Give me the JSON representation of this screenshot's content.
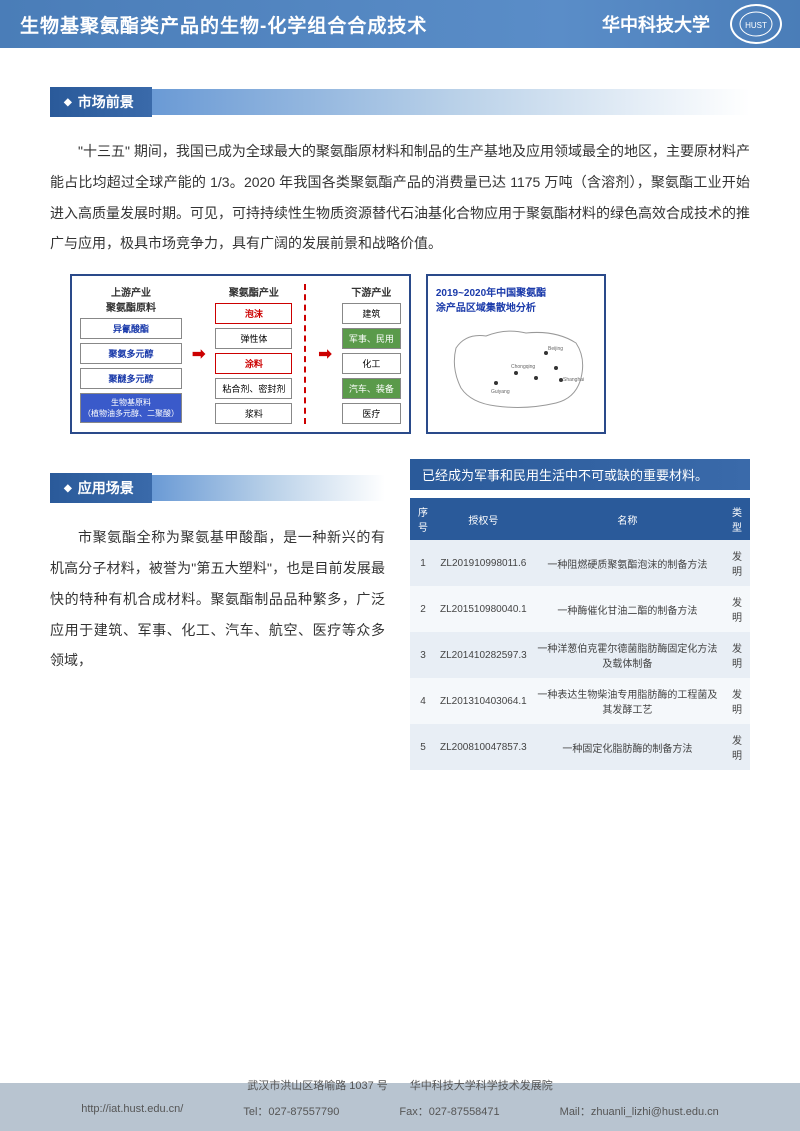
{
  "header": {
    "title": "生物基聚氨酯类产品的生物-化学组合合成技术",
    "university": "华中科技大学",
    "logo_text": "HUST"
  },
  "section1": {
    "title": "市场前景",
    "text": "\"十三五\" 期间，我国已成为全球最大的聚氨酯原材料和制品的生产基地及应用领域最全的地区，主要原材料产能占比均超过全球产能的 1/3。2020 年我国各类聚氨酯产品的消费量已达 1175 万吨（含溶剂），聚氨酯工业开始进入高质量发展时期。可见，可持持续性生物质资源替代石油基化合物应用于聚氨酯材料的绿色高效合成技术的推广与应用，极具市场竞争力，具有广阔的发展前景和战略价值。"
  },
  "diagram": {
    "col1_head": "上游产业\n聚氨酯原料",
    "col1": [
      "异氰酸酯",
      "聚氨多元醇",
      "聚醚多元醇"
    ],
    "col1_bio": "生物基原料\n（植物油多元醇、二聚酸）",
    "col2_head": "聚氨酯产业",
    "col2": [
      "泡沫",
      "弹性体",
      "涂料",
      "粘合剂、密封剂",
      "浆料"
    ],
    "col3_head": "下游产业",
    "col3": [
      "建筑",
      "军事、民用",
      "化工",
      "汽车、装备",
      "医疗"
    ],
    "map_title": "2019~2020年中国聚氨酯\n涂产品区域集散地分析"
  },
  "section2": {
    "title": "应用场景",
    "text": "市聚氨酯全称为聚氨基甲酸酯，是一种新兴的有机高分子材料，被誉为\"第五大塑料\"，也是目前发展最快的特种有机合成材料。聚氨酯制品品种繁多，广泛应用于建筑、军事、化工、汽车、航空、医疗等众多领域，",
    "callout": "已经成为军事和民用生活中不可或缺的重要材料。"
  },
  "table": {
    "headers": [
      "序号",
      "授权号",
      "名称",
      "类型"
    ],
    "rows": [
      [
        "1",
        "ZL201910998011.6",
        "一种阻燃硬质聚氨酯泡沫的制备方法",
        "发明"
      ],
      [
        "2",
        "ZL201510980040.1",
        "一种酶催化甘油二酯的制备方法",
        "发明"
      ],
      [
        "3",
        "ZL201410282597.3",
        "一种洋葱伯克霍尔德菌脂肪酶固定化方法及载体制备",
        "发明"
      ],
      [
        "4",
        "ZL201310403064.1",
        "一种表达生物柴油专用脂肪酶的工程菌及其发酵工艺",
        "发明"
      ],
      [
        "5",
        "ZL200810047857.3",
        "一种固定化脂肪酶的制备方法",
        "发明"
      ]
    ]
  },
  "footer": {
    "address": "武汉市洪山区珞喻路 1037 号　　华中科技大学科学技术发展院",
    "url": "http://iat.hust.edu.cn/",
    "tel": "Tel：027-87557790",
    "fax": "Fax：027-87558471",
    "mail": "Mail：zhuanli_lizhi@hust.edu.cn"
  }
}
